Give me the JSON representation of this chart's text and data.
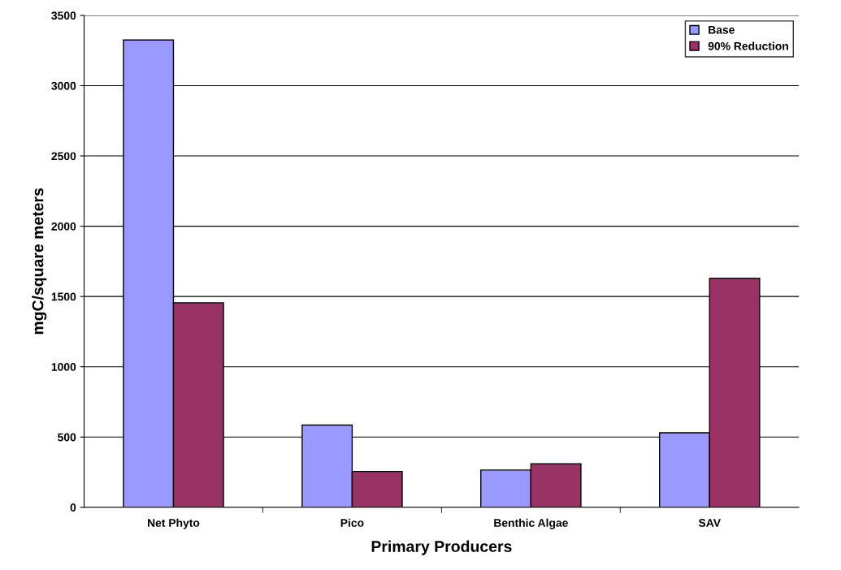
{
  "chart_data": {
    "type": "bar",
    "xlabel": "Primary Producers",
    "ylabel": "mgC/square meters",
    "categories": [
      "Net Phyto",
      "Pico",
      "Benthic Algae",
      "SAV"
    ],
    "series": [
      {
        "name": "Base",
        "color": "#9999ff",
        "values": [
          3325,
          585,
          265,
          530
        ]
      },
      {
        "name": "90% Reduction",
        "color": "#993366",
        "values": [
          1455,
          255,
          310,
          1630
        ]
      }
    ],
    "ylim": [
      0,
      3500
    ],
    "yticks": [
      0,
      500,
      1000,
      1500,
      2000,
      2500,
      3000,
      3500
    ],
    "grid": "y",
    "legend": "top right"
  }
}
